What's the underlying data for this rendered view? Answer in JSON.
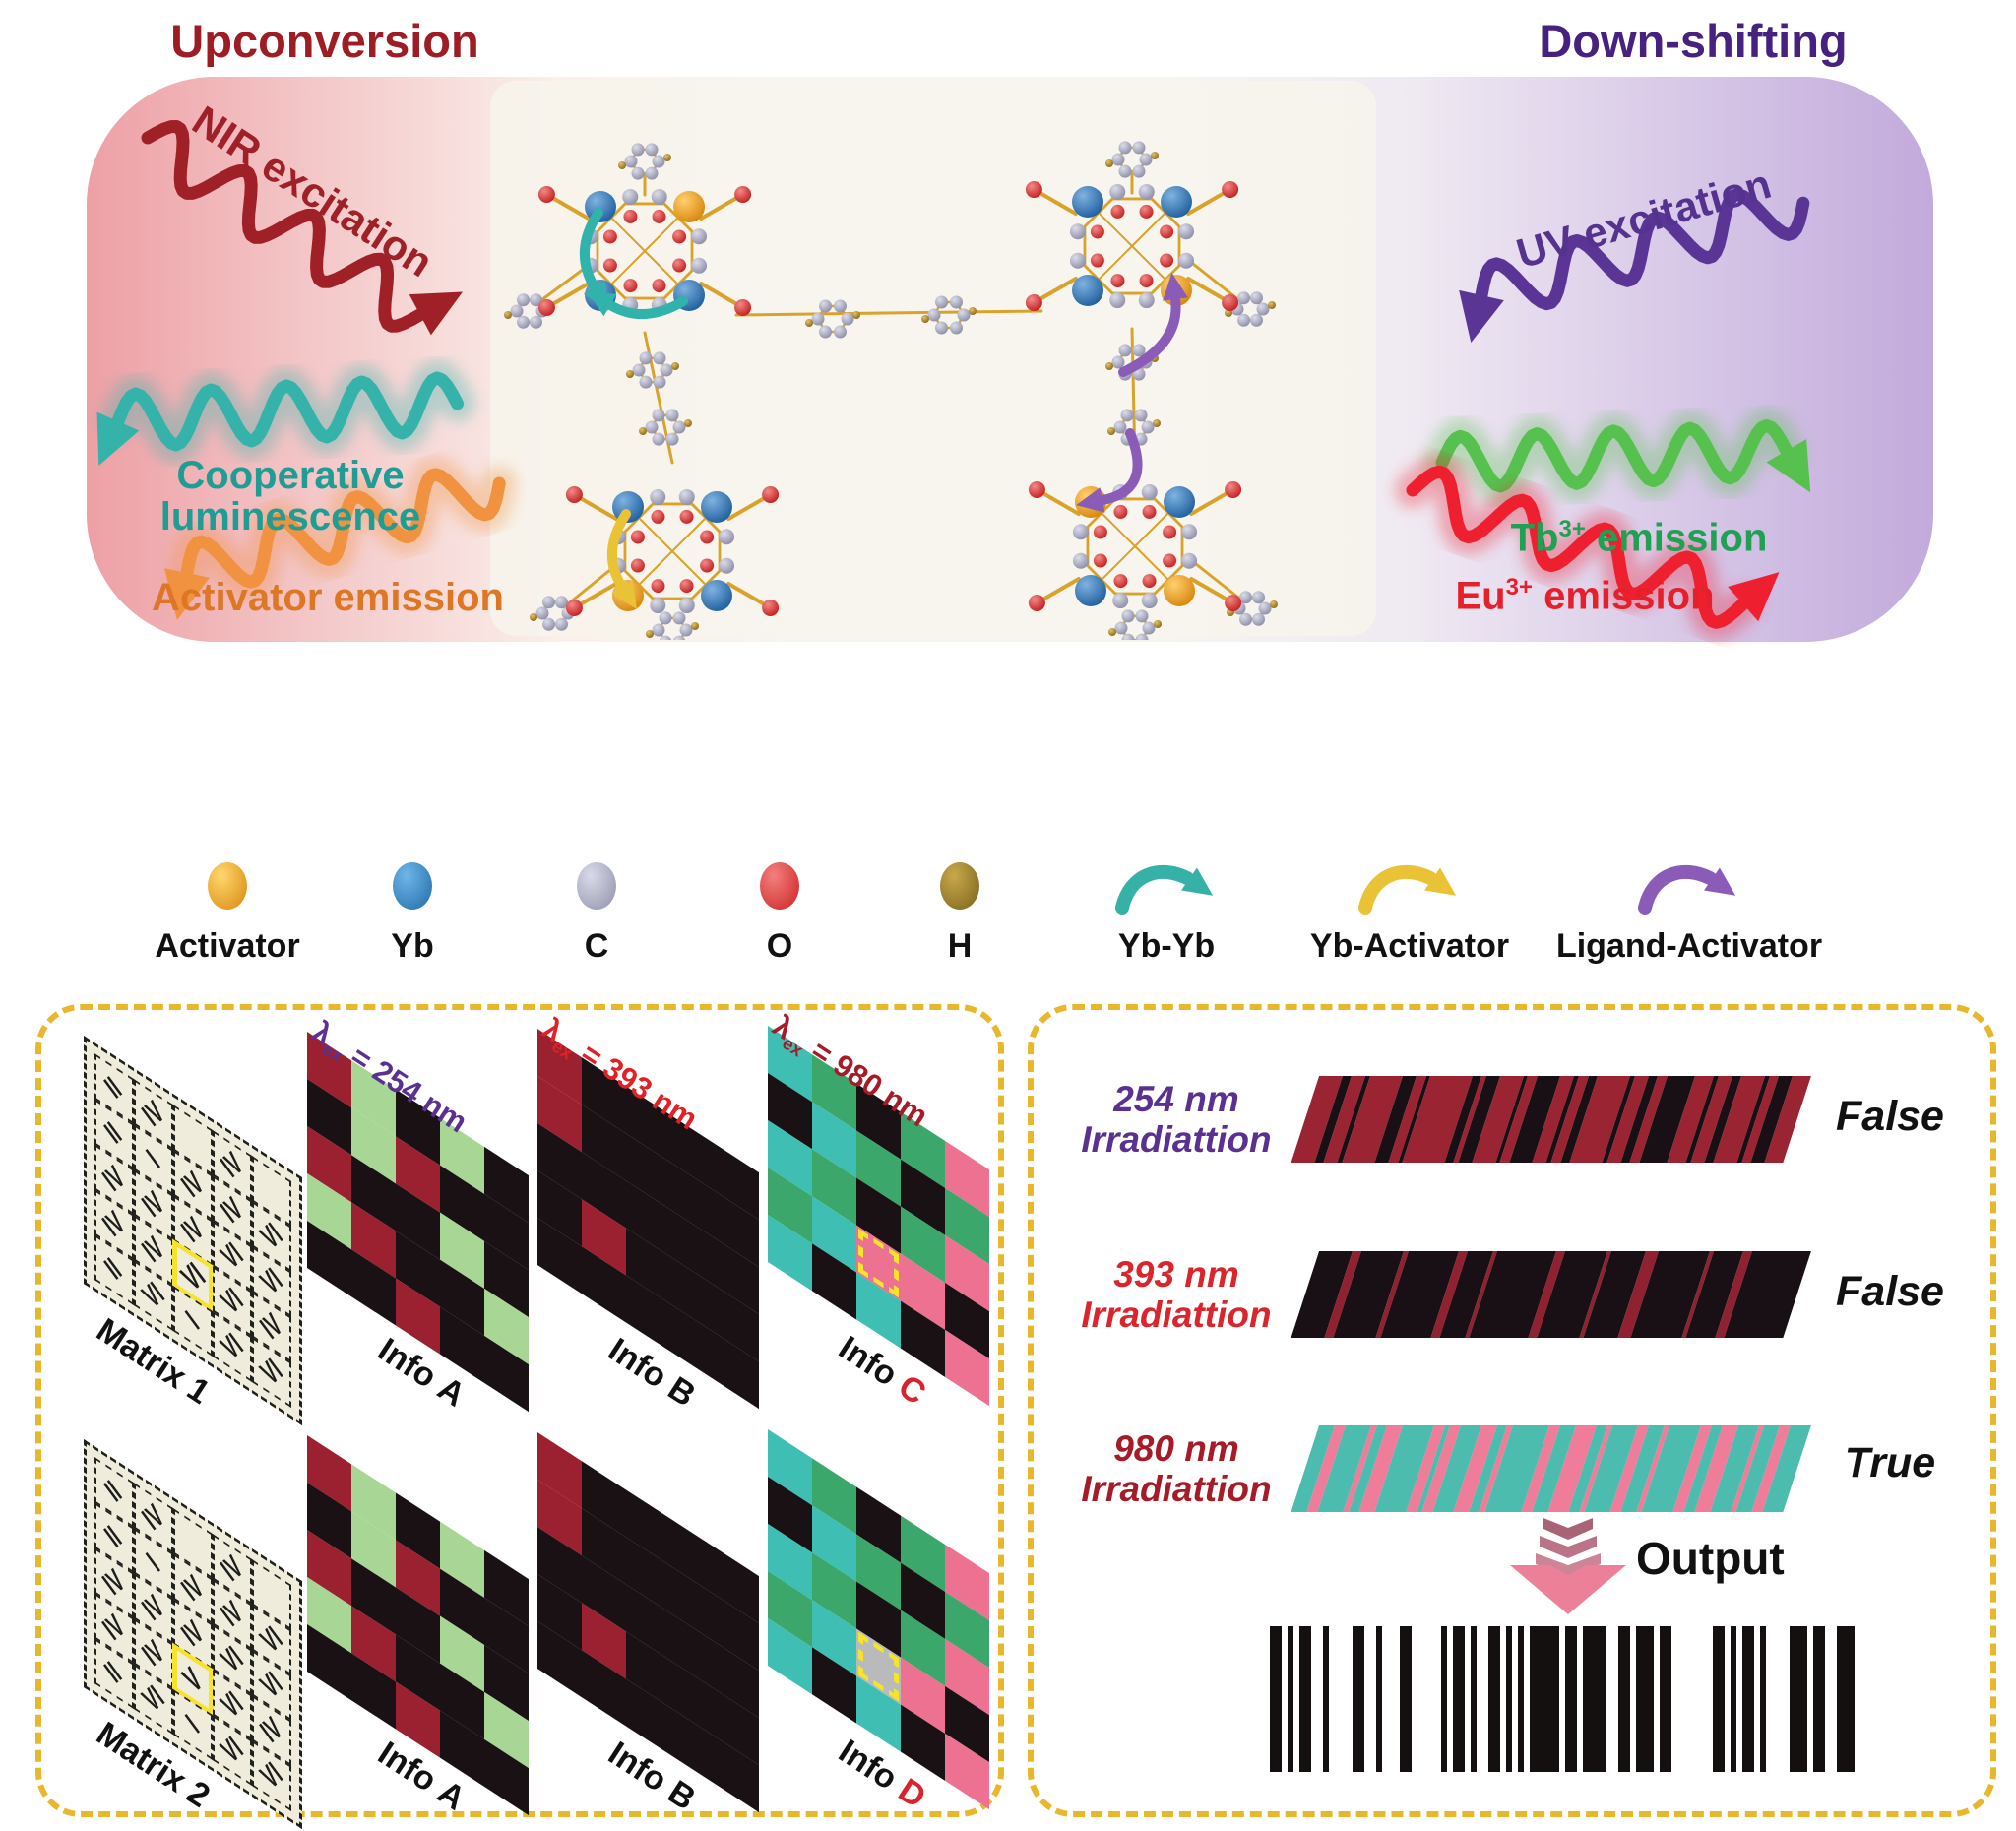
{
  "titles": {
    "upconversion": "Upconversion",
    "downshifting": "Down-shifting"
  },
  "banner": {
    "nir": {
      "label": "NIR excitation",
      "color": "#a02028"
    },
    "coop": {
      "label": "Cooperative luminescence",
      "color": "#1f9d94",
      "wave_color": "#35b3ab"
    },
    "act": {
      "label": "Activator emission",
      "color": "#dd7723",
      "wave_color": "#f0923f"
    },
    "uv": {
      "label": "UV excitation",
      "color": "#55328f",
      "wave_color": "#5b3596"
    },
    "tb": {
      "base": "Tb",
      "sup": "3+",
      "rest": " emission",
      "color": "#1fa053",
      "wave_color": "#56c14e"
    },
    "eu": {
      "base": "Eu",
      "sup": "3+",
      "rest": " emission",
      "color": "#e6202a",
      "wave_color": "#ee2030"
    },
    "title_left_color": "#9e1c24",
    "title_right_color": "#46217f"
  },
  "legend": {
    "atoms": [
      {
        "label": "Activator",
        "light": "#ffd76e",
        "dark": "#d8860b"
      },
      {
        "label": "Yb",
        "light": "#6fb6e8",
        "dark": "#1f6aa8"
      },
      {
        "label": "C",
        "light": "#d9dae8",
        "dark": "#8f90aa"
      },
      {
        "label": "O",
        "light": "#f2807e",
        "dark": "#cc2222"
      },
      {
        "label": "H",
        "light": "#c9a84c",
        "dark": "#79621a"
      }
    ],
    "arrows": [
      {
        "label": "Yb-Yb",
        "color": "#36b1a8"
      },
      {
        "label": "Yb-Activator",
        "color": "#e9c235"
      },
      {
        "label": "Ligand-Activator",
        "color": "#8a5cb8"
      }
    ]
  },
  "left_panel": {
    "cell_colors": {
      "k": "#191114",
      "r": "#9c2130",
      "g": "#a8d795",
      "G": "#3ca76a",
      "t": "#3fbfb4",
      "p": "#ed7190",
      "w": "#b9babc"
    },
    "matrix_grid": [
      [
        "II",
        "IV",
        "",
        "IV",
        ""
      ],
      [
        "II",
        "I",
        "IV",
        "IV",
        "VI"
      ],
      [
        "IV",
        "IV",
        "IV",
        "VI",
        "VI"
      ],
      [
        "IV",
        "IV",
        "VI",
        "VI",
        "IV"
      ],
      [
        "II",
        "VI",
        "I",
        "VI",
        "VI"
      ]
    ],
    "matrix1": {
      "label": "Matrix 1",
      "highlight": {
        "row": 3,
        "col": 2,
        "value": "VI"
      }
    },
    "matrix2": {
      "label": "Matrix 2",
      "highlight": {
        "row": 3,
        "col": 2,
        "value": "V"
      }
    },
    "grid_A": [
      [
        "r",
        "g",
        "k",
        "g",
        "k"
      ],
      [
        "k",
        "g",
        "r",
        "k",
        "k"
      ],
      [
        "r",
        "k",
        "k",
        "g",
        "k"
      ],
      [
        "g",
        "r",
        "k",
        "k",
        "g"
      ],
      [
        "k",
        "k",
        "r",
        "k",
        "k"
      ]
    ],
    "grid_B": [
      [
        "r",
        "k",
        "k",
        "k",
        "k"
      ],
      [
        "r",
        "k",
        "k",
        "k",
        "k"
      ],
      [
        "k",
        "k",
        "k",
        "k",
        "k"
      ],
      [
        "k",
        "r",
        "k",
        "k",
        "k"
      ],
      [
        "k",
        "k",
        "k",
        "k",
        "k"
      ]
    ],
    "grid_C": [
      [
        "t",
        "G",
        "k",
        "G",
        "p"
      ],
      [
        "k",
        "t",
        "G",
        "k",
        "G"
      ],
      [
        "t",
        "G",
        "k",
        "G",
        "p"
      ],
      [
        "G",
        "t",
        "p",
        "p",
        "k"
      ],
      [
        "t",
        "k",
        "t",
        "k",
        "p"
      ]
    ],
    "grid_D": [
      [
        "t",
        "G",
        "k",
        "G",
        "p"
      ],
      [
        "k",
        "t",
        "G",
        "k",
        "G"
      ],
      [
        "t",
        "G",
        "k",
        "G",
        "p"
      ],
      [
        "G",
        "t",
        "w",
        "p",
        "k"
      ],
      [
        "t",
        "k",
        "t",
        "k",
        "p"
      ]
    ],
    "info_highlight": {
      "row": 3,
      "col": 2
    },
    "labels": {
      "infoA": {
        "label": "Info",
        "letter": "A",
        "letter_color": "#111111"
      },
      "infoB": {
        "label": "Info",
        "letter": "B",
        "letter_color": "#111111"
      },
      "infoC": {
        "label": "Info",
        "letter": "C",
        "letter_color": "#d8232a"
      },
      "infoD": {
        "label": "Info",
        "letter": "D",
        "letter_color": "#d8232a"
      }
    },
    "lambdas": {
      "l254": {
        "lambda": "λ",
        "sub": "ex",
        "eq": " = 254 nm",
        "color": "#5a3191"
      },
      "l393": {
        "lambda": "λ",
        "sub": "ex",
        "eq": " = 393 nm",
        "color": "#e02227"
      },
      "l980": {
        "lambda": "λ",
        "sub": "ex",
        "eq": " = 980 nm",
        "color": "#a61b28"
      }
    }
  },
  "right_panel": {
    "rows": [
      {
        "line1": "254 nm",
        "line2": "Irradiattion",
        "color": "#5a3191",
        "verdict": "False",
        "band": {
          "colors": {
            "a": "#9b2433",
            "b": "#181014"
          },
          "stripes": [
            [
              5,
              "a"
            ],
            [
              2,
              "b"
            ],
            [
              3,
              "a"
            ],
            [
              1,
              "b"
            ],
            [
              7,
              "a"
            ],
            [
              3,
              "b"
            ],
            [
              2,
              "a"
            ],
            [
              1,
              "b"
            ],
            [
              9,
              "a"
            ],
            [
              2,
              "b"
            ],
            [
              1,
              "a"
            ],
            [
              3,
              "b"
            ],
            [
              5,
              "a"
            ],
            [
              1,
              "b"
            ],
            [
              2,
              "a"
            ],
            [
              5,
              "b"
            ],
            [
              3,
              "a"
            ],
            [
              1,
              "b"
            ],
            [
              2,
              "a"
            ],
            [
              2,
              "b"
            ],
            [
              7,
              "a"
            ],
            [
              1,
              "b"
            ],
            [
              3,
              "a"
            ],
            [
              2,
              "b"
            ],
            [
              2,
              "a"
            ],
            [
              6,
              "b"
            ],
            [
              4,
              "a"
            ],
            [
              1,
              "b"
            ],
            [
              3,
              "a"
            ],
            [
              2,
              "b"
            ],
            [
              5,
              "a"
            ],
            [
              1,
              "b"
            ],
            [
              2,
              "a"
            ],
            [
              3,
              "b"
            ],
            [
              4,
              "a"
            ]
          ]
        }
      },
      {
        "line1": "393 nm",
        "line2": "Irradiattion",
        "color": "#d9252b",
        "verdict": "False",
        "band": {
          "colors": {
            "a": "#181014",
            "b": "#8f2130"
          },
          "stripes": [
            [
              8,
              "a"
            ],
            [
              2,
              "b"
            ],
            [
              10,
              "a"
            ],
            [
              1,
              "b"
            ],
            [
              12,
              "a"
            ],
            [
              2,
              "b"
            ],
            [
              6,
              "a"
            ],
            [
              1,
              "b"
            ],
            [
              14,
              "a"
            ],
            [
              2,
              "b"
            ],
            [
              10,
              "a"
            ],
            [
              1,
              "b"
            ],
            [
              8,
              "a"
            ],
            [
              3,
              "b"
            ],
            [
              12,
              "a"
            ],
            [
              1,
              "b"
            ],
            [
              7,
              "a"
            ],
            [
              2,
              "b"
            ],
            [
              14,
              "a"
            ]
          ]
        }
      },
      {
        "line1": "980 nm",
        "line2": "Irradiattion",
        "color": "#a61b28",
        "verdict": "True",
        "band": {
          "colors": {
            "a": "#4cbcae",
            "b": "#ef7d99"
          },
          "stripes": [
            [
              3,
              "a"
            ],
            [
              2,
              "b"
            ],
            [
              5,
              "a"
            ],
            [
              1,
              "b"
            ],
            [
              2,
              "a"
            ],
            [
              3,
              "b"
            ],
            [
              6,
              "a"
            ],
            [
              2,
              "b"
            ],
            [
              1,
              "a"
            ],
            [
              2,
              "b"
            ],
            [
              4,
              "a"
            ],
            [
              3,
              "b"
            ],
            [
              2,
              "a"
            ],
            [
              1,
              "b"
            ],
            [
              7,
              "a"
            ],
            [
              2,
              "b"
            ],
            [
              3,
              "a"
            ],
            [
              4,
              "b"
            ],
            [
              2,
              "a"
            ],
            [
              1,
              "b"
            ],
            [
              5,
              "a"
            ],
            [
              2,
              "b"
            ],
            [
              3,
              "a"
            ],
            [
              1,
              "b"
            ],
            [
              6,
              "a"
            ],
            [
              2,
              "b"
            ],
            [
              2,
              "a"
            ],
            [
              3,
              "b"
            ],
            [
              4,
              "a"
            ],
            [
              1,
              "b"
            ],
            [
              3,
              "a"
            ],
            [
              2,
              "b"
            ],
            [
              4,
              "a"
            ]
          ]
        }
      }
    ],
    "output_label": "Output",
    "output_arrow_color": "#ec8099",
    "barcode": {
      "unit": 6,
      "pattern": [
        2,
        1,
        1,
        1,
        2,
        2,
        1,
        4,
        2,
        2,
        1,
        3,
        2,
        5,
        1,
        1,
        2,
        1,
        1,
        2,
        2,
        1,
        1,
        1,
        1,
        1,
        5,
        1,
        2,
        1,
        4,
        2,
        2,
        1,
        3,
        1,
        2,
        7,
        2,
        1,
        1,
        1,
        2,
        1,
        1,
        4,
        3,
        1,
        2,
        2,
        3,
        2
      ]
    }
  },
  "molecule_colors": {
    "bond": "#d9a32b",
    "teal_arrow": "#2fb3aa",
    "yellow_arrow": "#e9c235",
    "purple_arrow": "#8a5cb8"
  }
}
